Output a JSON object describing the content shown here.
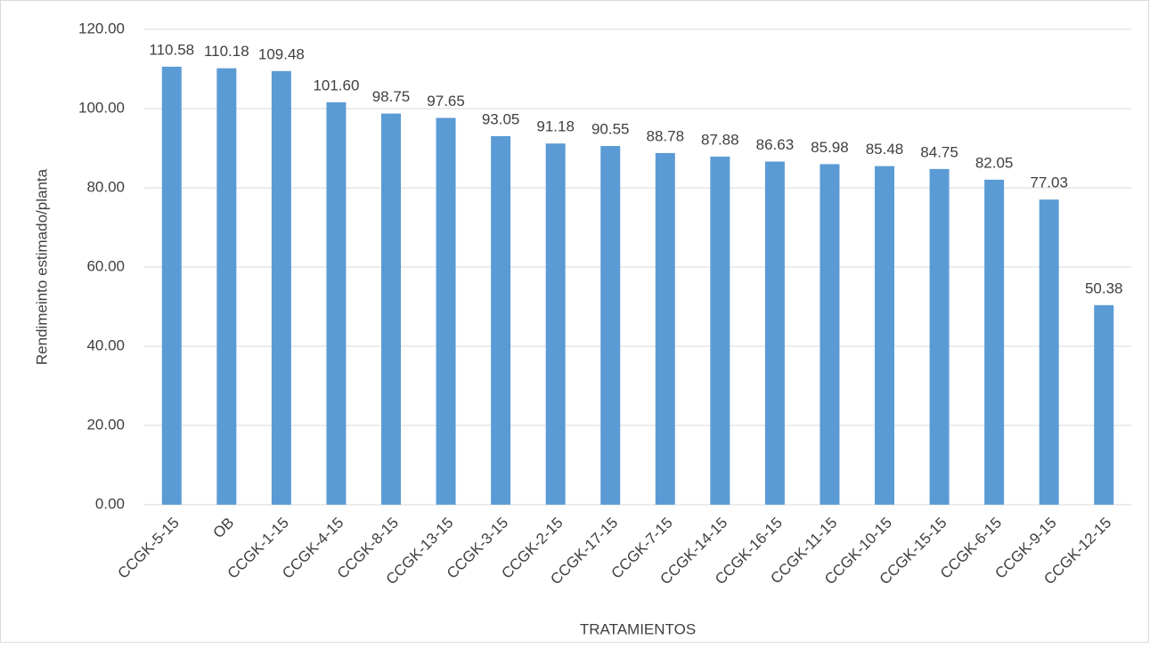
{
  "chart_data": {
    "type": "bar",
    "y_label": "Rendimeinto estimado/planta",
    "x_label": "TRATAMIENTOS",
    "categories": [
      "CCGK-5-15",
      "OB",
      "CCGK-1-15",
      "CCGK-4-15",
      "CCGK-8-15",
      "CCGK-13-15",
      "CCGK-3-15",
      "CCGK-2-15",
      "CCGK-17-15",
      "CCGK-7-15",
      "CCGK-14-15",
      "CCGK-16-15",
      "CCGK-11-15",
      "CCGK-10-15",
      "CCGK-15-15",
      "CCGK-6-15",
      "CCGK-9-15",
      "CCGK-12-15"
    ],
    "values": [
      110.58,
      110.18,
      109.48,
      101.6,
      98.75,
      97.65,
      93.05,
      91.18,
      90.55,
      88.78,
      87.88,
      86.63,
      85.98,
      85.48,
      84.75,
      82.05,
      77.03,
      50.38
    ],
    "value_labels": [
      "110.58",
      "110.18",
      "109.48",
      "101.60",
      "98.75",
      "97.65",
      "93.05",
      "91.18",
      "90.55",
      "88.78",
      "87.88",
      "86.63",
      "85.98",
      "85.48",
      "84.75",
      "82.05",
      "77.03",
      "50.38"
    ],
    "color": "#5b9bd5",
    "ylim": [
      0,
      120
    ],
    "yticks": [
      {
        "value": 0,
        "label": "0.00"
      },
      {
        "value": 20,
        "label": "20.00"
      },
      {
        "value": 40,
        "label": "40.00"
      },
      {
        "value": 60,
        "label": "60.00"
      },
      {
        "value": 80,
        "label": "80.00"
      },
      {
        "value": 100,
        "label": "100.00"
      },
      {
        "value": 120,
        "label": "120.00"
      }
    ],
    "grid": true
  }
}
